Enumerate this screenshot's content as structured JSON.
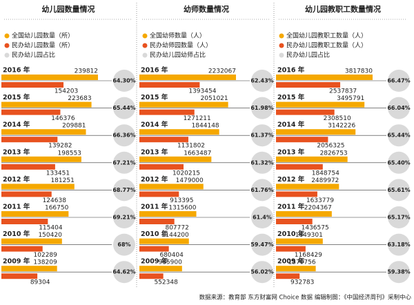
{
  "chart_data": [
    {
      "type": "bar",
      "title": "幼儿园数量情况",
      "categories": [
        "2016 年",
        "2015 年",
        "2014 年",
        "2013 年",
        "2012 年",
        "2011 年",
        "2010 年",
        "2009 年"
      ],
      "series": [
        {
          "name": "全国幼儿园数量（所）",
          "color": "#f5a800",
          "values": [
            239812,
            223683,
            209881,
            198553,
            181251,
            166750,
            150420,
            138209
          ]
        },
        {
          "name": "民办幼儿园数量（所）",
          "color": "#e8521f",
          "values": [
            154203,
            146376,
            139282,
            133451,
            124638,
            115404,
            102289,
            89304
          ]
        },
        {
          "name": "民办幼儿园占比",
          "color": "#d9d9d9",
          "values": [
            64.3,
            65.44,
            66.36,
            67.21,
            68.77,
            69.21,
            68,
            64.62
          ],
          "value_labels": [
            "64.30%",
            "65.44%",
            "66.36%",
            "67.21%",
            "68.77%",
            "69.21%",
            "68%",
            "64.62%"
          ]
        }
      ]
    },
    {
      "type": "bar",
      "title": "幼师数量情况",
      "categories": [
        "2016 年",
        "2015 年",
        "2014 年",
        "2013 年",
        "2012 年",
        "2011 年",
        "2010 年",
        "2009 年"
      ],
      "series": [
        {
          "name": "全国幼师数量（人）",
          "color": "#f5a800",
          "values": [
            2232067,
            2051021,
            1844148,
            1663487,
            1479000,
            1315600,
            1144200,
            985900
          ]
        },
        {
          "name": "民办幼师园数量（人）",
          "color": "#e8521f",
          "values": [
            1393454,
            1271211,
            1131802,
            1020215,
            913395,
            807772,
            680404,
            552348
          ]
        },
        {
          "name": "民办幼儿园幼师占比",
          "color": "#d9d9d9",
          "values": [
            62.43,
            61.98,
            61.37,
            61.32,
            61.76,
            61.4,
            59.47,
            56.02
          ],
          "value_labels": [
            "62.43%",
            "61.98%",
            "61.37%",
            "61.32%",
            "61.76%",
            "61.4%",
            "59.47%",
            "56.02%"
          ]
        }
      ]
    },
    {
      "type": "bar",
      "title": "幼儿园教职工数量情况",
      "categories": [
        "2016 年",
        "2015 年",
        "2014 年",
        "2013 年",
        "2012 年",
        "2011 年",
        "2010 年",
        "2009 年"
      ],
      "series": [
        {
          "name": "全国幼儿园教职工数量（人）",
          "color": "#f5a800",
          "values": [
            3817830,
            3495791,
            3142226,
            2826753,
            2489972,
            2204367,
            1849301,
            1570756
          ]
        },
        {
          "name": "民办幼儿园教职工数量（人）",
          "color": "#e8521f",
          "values": [
            2537837,
            2308510,
            2056325,
            1848754,
            1633779,
            1436575,
            1168429,
            932783
          ]
        },
        {
          "name": "民办幼儿园占比",
          "color": "#d9d9d9",
          "values": [
            66.47,
            66.04,
            65.44,
            65.4,
            65.61,
            65.17,
            63.18,
            59.38
          ],
          "value_labels": [
            "66.47%",
            "66.04%",
            "65.44%",
            "65.40%",
            "65.61%",
            "65.17%",
            "63.18%",
            "59.38%"
          ]
        }
      ]
    }
  ],
  "footer": "数据来源：教育部  东方财富网 Choice 数据    编辑制图：《中国经济周刊》采制中心"
}
